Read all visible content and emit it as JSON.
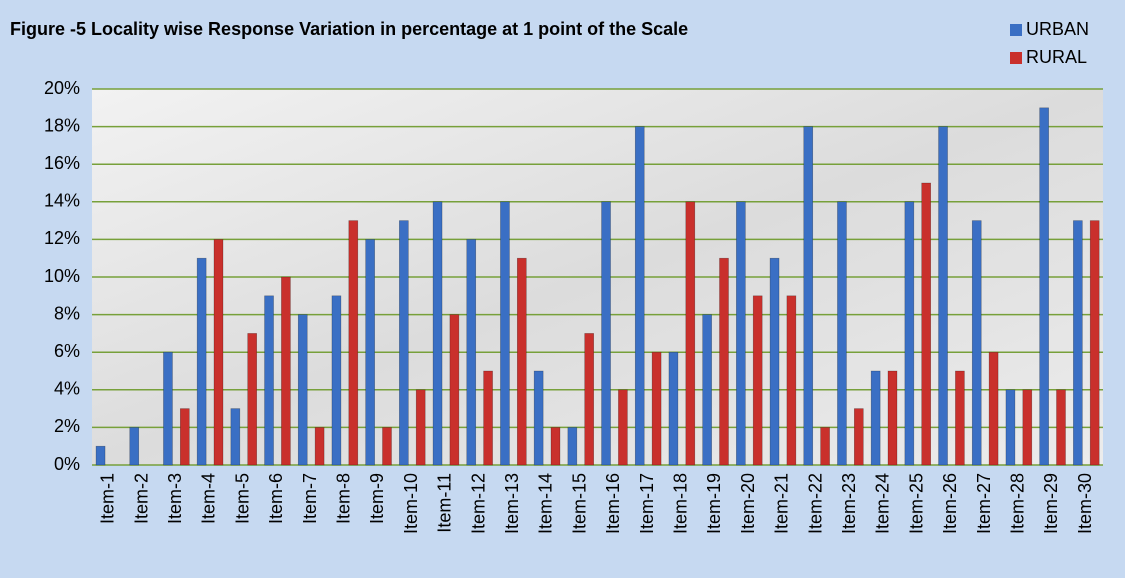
{
  "chart_data": {
    "type": "bar",
    "title": "Figure -5 Locality wise Response Variation in percentage at 1 point of the Scale",
    "categories": [
      "Item-1",
      "Item-2",
      "Item-3",
      "Item-4",
      "Item-5",
      "Item-6",
      "Item-7",
      "Item-8",
      "Item-9",
      "Item-10",
      "Item-11",
      "Item-12",
      "Item-13",
      "Item-14",
      "Item-15",
      "Item-16",
      "Item-17",
      "Item-18",
      "Item-19",
      "Item-20",
      "Item-21",
      "Item-22",
      "Item-23",
      "Item-24",
      "Item-25",
      "Item-26",
      "Item-27",
      "Item-28",
      "Item-29",
      "Item-30"
    ],
    "series": [
      {
        "name": "URBAN",
        "color": "#3a6fc4",
        "values": [
          1,
          2,
          6,
          11,
          3,
          9,
          8,
          9,
          12,
          13,
          14,
          12,
          14,
          5,
          2,
          14,
          18,
          6,
          8,
          14,
          11,
          18,
          14,
          5,
          14,
          18,
          13,
          4,
          19,
          13
        ]
      },
      {
        "name": "RURAL",
        "color": "#c9302c",
        "values": [
          0,
          0,
          3,
          12,
          7,
          10,
          2,
          13,
          2,
          4,
          8,
          5,
          11,
          2,
          7,
          4,
          6,
          14,
          11,
          9,
          9,
          2,
          3,
          5,
          15,
          5,
          6,
          4,
          4,
          13
        ]
      }
    ],
    "ylim": [
      0,
      20
    ],
    "yticks": [
      {
        "value": 0,
        "label": "0%"
      },
      {
        "value": 2,
        "label": "2%"
      },
      {
        "value": 4,
        "label": "4%"
      },
      {
        "value": 6,
        "label": "6%"
      },
      {
        "value": 8,
        "label": "8%"
      },
      {
        "value": 10,
        "label": "10%"
      },
      {
        "value": 12,
        "label": "12%"
      },
      {
        "value": 14,
        "label": "14%"
      },
      {
        "value": 16,
        "label": "16%"
      },
      {
        "value": 18,
        "label": "18%"
      },
      {
        "value": 20,
        "label": "20%"
      }
    ],
    "grid": true,
    "legend": "top-right"
  }
}
